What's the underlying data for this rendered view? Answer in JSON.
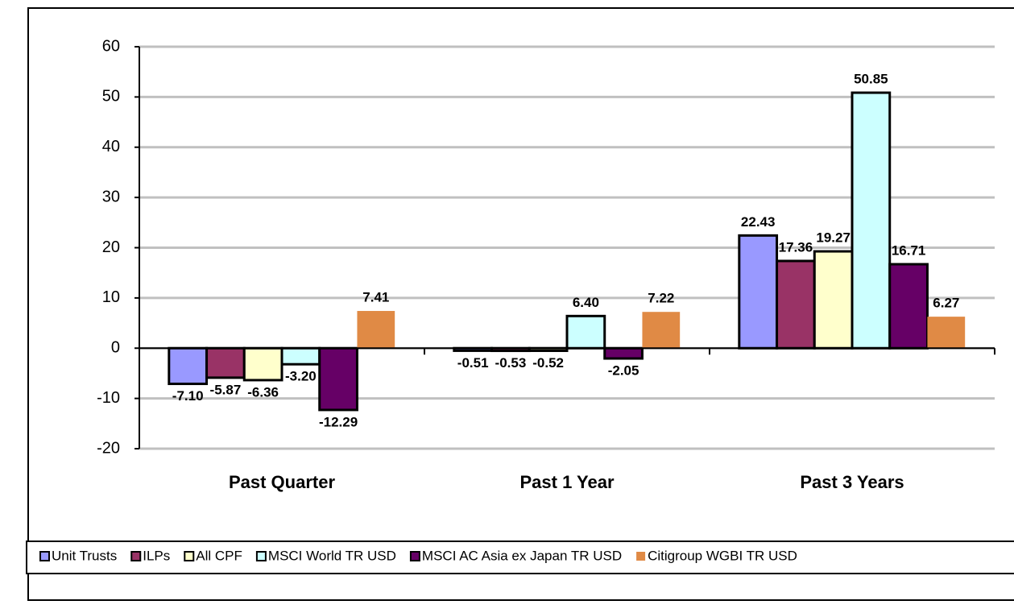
{
  "chart_data": {
    "type": "bar",
    "categories": [
      "Past Quarter",
      "Past 1 Year",
      "Past 3 Years"
    ],
    "series": [
      {
        "name": "Unit Trusts",
        "color": "#9999ff",
        "outlined": true,
        "values": [
          -7.1,
          -0.51,
          22.43
        ],
        "value_labels": [
          "-7.10",
          "-0.51",
          "22.43"
        ]
      },
      {
        "name": "ILPs",
        "color": "#993366",
        "outlined": true,
        "values": [
          -5.87,
          -0.53,
          17.36
        ],
        "value_labels": [
          "-5.87",
          "-0.53",
          "17.36"
        ]
      },
      {
        "name": "All CPF",
        "color": "#ffffcc",
        "outlined": true,
        "values": [
          -6.36,
          -0.52,
          19.27
        ],
        "value_labels": [
          "-6.36",
          "-0.52",
          "19.27"
        ]
      },
      {
        "name": "MSCI World TR USD",
        "color": "#ccffff",
        "outlined": true,
        "values": [
          -3.2,
          6.4,
          50.85
        ],
        "value_labels": [
          "-3.20",
          "6.40",
          "50.85"
        ]
      },
      {
        "name": "MSCI AC Asia ex Japan TR USD",
        "color": "#660066",
        "outlined": true,
        "values": [
          -12.29,
          -2.05,
          16.71
        ],
        "value_labels": [
          "-12.29",
          "-2.05",
          "16.71"
        ]
      },
      {
        "name": "Citigroup WGBI TR USD",
        "color": "#e08a45",
        "outlined": false,
        "values": [
          7.41,
          7.22,
          6.27
        ],
        "value_labels": [
          "7.41",
          "7.22",
          "6.27"
        ]
      }
    ],
    "ylim": [
      -20,
      60
    ],
    "yticks": [
      -20,
      -10,
      0,
      10,
      20,
      30,
      40,
      50,
      60
    ],
    "grid": true,
    "legend": "bottom"
  }
}
